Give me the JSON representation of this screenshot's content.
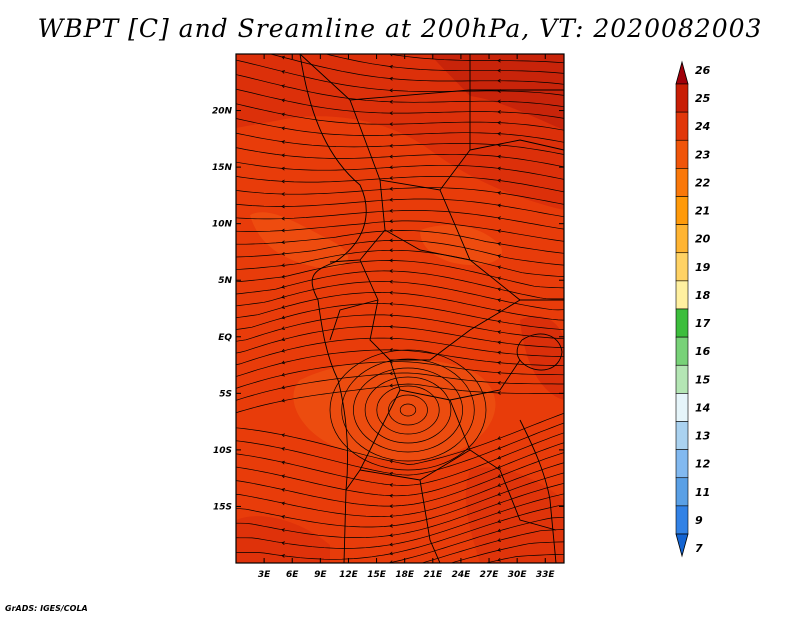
{
  "title": "WBPT [C] and Sreamline at 200hPa, VT: 2020082003",
  "credit": "GrADS: IGES/COLA",
  "lat_labels": [
    "20N",
    "15N",
    "10N",
    "5N",
    "EQ",
    "5S",
    "10S",
    "15S"
  ],
  "lat_values": [
    20,
    15,
    10,
    5,
    0,
    -5,
    -10,
    -15
  ],
  "lon_labels": [
    "3E",
    "6E",
    "9E",
    "12E",
    "15E",
    "18E",
    "21E",
    "24E",
    "27E",
    "30E",
    "33E"
  ],
  "lon_values": [
    3,
    6,
    9,
    12,
    15,
    18,
    21,
    24,
    27,
    30,
    33
  ],
  "domain": {
    "lon_min": 0,
    "lon_max": 35,
    "lat_min": -20,
    "lat_max": 25
  },
  "colorbar": {
    "labels": [
      "26",
      "25",
      "24",
      "23",
      "22",
      "21",
      "20",
      "19",
      "18",
      "17",
      "16",
      "15",
      "14",
      "13",
      "12",
      "11",
      "9",
      "7"
    ],
    "colors": [
      "#a0000a",
      "#c81e05",
      "#e1370a",
      "#f0550a",
      "#fa780a",
      "#ff9a0a",
      "#ffb432",
      "#ffd264",
      "#fff0a0",
      "#3cbe3c",
      "#78d278",
      "#b4e6b4",
      "#e6f5fa",
      "#aad2f0",
      "#82b9f0",
      "#5aa0e6",
      "#3282e6",
      "#1464d2"
    ]
  },
  "colors": {
    "field_base": "#e83c0a",
    "field_warm": "#c8240a",
    "streamline": "#000000"
  }
}
